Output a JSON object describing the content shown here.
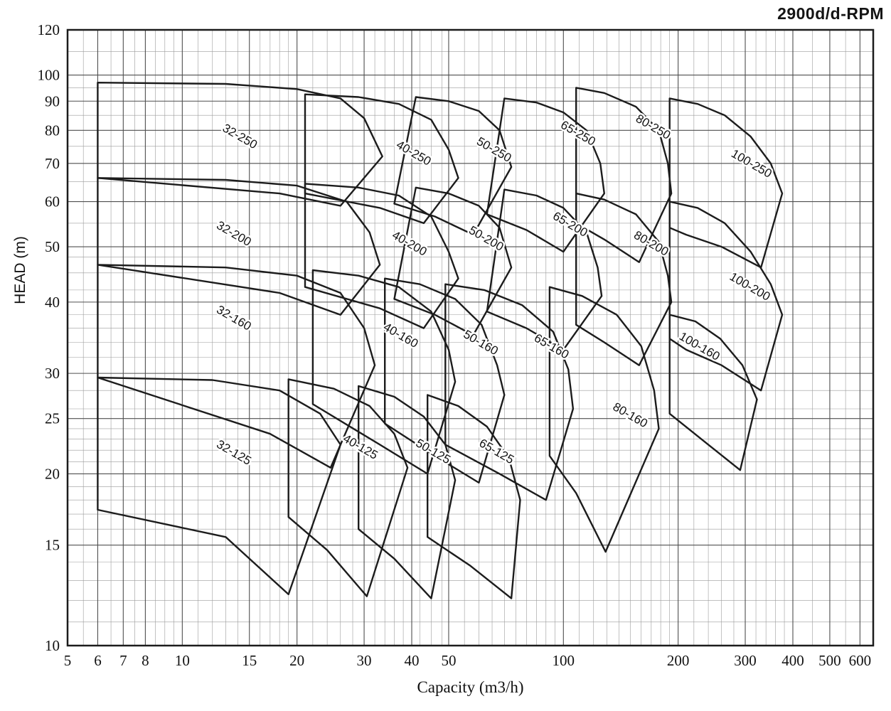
{
  "header": {
    "rpm_label": "2900d/d-RPM"
  },
  "colors": {
    "curve": "#1c1c1c",
    "grid_minor": "#9b9b9b",
    "grid_major": "#4f4f4f",
    "frame": "#1c1c1c",
    "text": "#111111",
    "background": "#ffffff"
  },
  "chart_data": {
    "type": "line",
    "subtype": "pump-selection-envelope-chart",
    "title": "2900d/d-RPM",
    "xlabel": "Capacity (m3/h)",
    "ylabel": "HEAD (m)",
    "x_scale": "log",
    "y_scale": "log",
    "xlim": [
      5,
      650
    ],
    "ylim": [
      10,
      120
    ],
    "grid": true,
    "x_ticks": [
      5,
      6,
      7,
      8,
      10,
      15,
      20,
      30,
      40,
      50,
      100,
      200,
      300,
      400,
      500,
      600
    ],
    "y_ticks": [
      10,
      15,
      20,
      25,
      30,
      40,
      50,
      60,
      70,
      80,
      90,
      100,
      120
    ],
    "x_minor": [
      5.5,
      6.5,
      7.5,
      8.5,
      9,
      9.5,
      11,
      12,
      13,
      14,
      16,
      17,
      18,
      19,
      22,
      24,
      26,
      28,
      32,
      34,
      36,
      38,
      42,
      45,
      48,
      55,
      60,
      65,
      70,
      75,
      80,
      85,
      90,
      95,
      110,
      120,
      130,
      140,
      150,
      160,
      170,
      180,
      190,
      220,
      240,
      260,
      280,
      320,
      340,
      360,
      380,
      450,
      550
    ],
    "y_minor": [
      11,
      12,
      13,
      14,
      16,
      17,
      18,
      19,
      21,
      22,
      23,
      24,
      26,
      28,
      32,
      34,
      36,
      38,
      42,
      45,
      48,
      55,
      65,
      75,
      85,
      95,
      110
    ],
    "label_angle": 30,
    "envelopes": [
      {
        "name": "32-125",
        "label_at": [
          13.5,
          21.5
        ],
        "points": [
          [
            6,
            29.5
          ],
          [
            12,
            29.2
          ],
          [
            18,
            28
          ],
          [
            23,
            25.5
          ],
          [
            26,
            22.5
          ],
          [
            19,
            12.3
          ],
          [
            13,
            15.5
          ],
          [
            6,
            17.3
          ]
        ]
      },
      {
        "name": "40-125",
        "label_at": [
          29,
          22
        ],
        "points": [
          [
            19,
            29.3
          ],
          [
            25,
            28.2
          ],
          [
            31,
            26.3
          ],
          [
            36,
            23.5
          ],
          [
            39,
            20.5
          ],
          [
            30.5,
            12.2
          ],
          [
            24,
            14.7
          ],
          [
            19,
            16.8
          ]
        ]
      },
      {
        "name": "50-125",
        "label_at": [
          45,
          21.6
        ],
        "points": [
          [
            29,
            28.5
          ],
          [
            36,
            27.3
          ],
          [
            43,
            25.2
          ],
          [
            49,
            22.5
          ],
          [
            52,
            19.5
          ],
          [
            45,
            12.1
          ],
          [
            36,
            14.2
          ],
          [
            29,
            16
          ]
        ]
      },
      {
        "name": "65-125",
        "label_at": [
          66,
          21.6
        ],
        "points": [
          [
            44,
            27.5
          ],
          [
            53,
            26.3
          ],
          [
            63,
            24.2
          ],
          [
            72,
            21.3
          ],
          [
            77,
            18
          ],
          [
            73,
            12.1
          ],
          [
            57,
            13.8
          ],
          [
            44,
            15.5
          ]
        ]
      },
      {
        "name": "32-160",
        "label_at": [
          13.5,
          37
        ],
        "points": [
          [
            6,
            46.5
          ],
          [
            13,
            46
          ],
          [
            20,
            44.5
          ],
          [
            26,
            41.5
          ],
          [
            30,
            36
          ],
          [
            32,
            31
          ],
          [
            24.5,
            20.5
          ],
          [
            17,
            23.5
          ],
          [
            6,
            29.5
          ]
        ]
      },
      {
        "name": "40-160",
        "label_at": [
          37,
          34.5
        ],
        "points": [
          [
            22,
            45.5
          ],
          [
            29,
            44.5
          ],
          [
            37,
            42.5
          ],
          [
            45,
            38.5
          ],
          [
            50,
            33
          ],
          [
            52,
            29
          ],
          [
            44,
            20
          ],
          [
            33,
            22.5
          ],
          [
            22,
            26.5
          ]
        ]
      },
      {
        "name": "50-160",
        "label_at": [
          60,
          33.5
        ],
        "points": [
          [
            34,
            44
          ],
          [
            42,
            43
          ],
          [
            52,
            40.5
          ],
          [
            61,
            36.5
          ],
          [
            67,
            31
          ],
          [
            70,
            27.5
          ],
          [
            60,
            19.3
          ],
          [
            46,
            21.5
          ],
          [
            34,
            24.5
          ]
        ]
      },
      {
        "name": "65-160",
        "label_at": [
          92,
          33
        ],
        "points": [
          [
            49,
            43
          ],
          [
            62,
            42
          ],
          [
            78,
            39.5
          ],
          [
            94,
            35.5
          ],
          [
            103,
            30.5
          ],
          [
            106,
            26
          ],
          [
            90,
            18
          ],
          [
            68,
            20
          ],
          [
            49,
            22.5
          ]
        ]
      },
      {
        "name": "80-160",
        "label_at": [
          148,
          25
        ],
        "points": [
          [
            92,
            42.5
          ],
          [
            112,
            41
          ],
          [
            138,
            38
          ],
          [
            160,
            33.5
          ],
          [
            173,
            28
          ],
          [
            178,
            24
          ],
          [
            129,
            14.6
          ],
          [
            108,
            18.5
          ],
          [
            92,
            21.5
          ]
        ]
      },
      {
        "name": "100-160",
        "label_at": [
          225,
          33
        ],
        "points": [
          [
            190,
            38
          ],
          [
            222,
            37
          ],
          [
            258,
            34.5
          ],
          [
            295,
            31
          ],
          [
            322,
            27
          ],
          [
            291,
            20.3
          ],
          [
            240,
            22.5
          ],
          [
            190,
            25.5
          ]
        ]
      },
      {
        "name": "32-200",
        "label_at": [
          13.5,
          52
        ],
        "points": [
          [
            6,
            66
          ],
          [
            13,
            65.5
          ],
          [
            20,
            64
          ],
          [
            27,
            60
          ],
          [
            31,
            53
          ],
          [
            33,
            46.5
          ],
          [
            26,
            38
          ],
          [
            18,
            41.5
          ],
          [
            6,
            46.5
          ]
        ]
      },
      {
        "name": "40-200",
        "label_at": [
          39,
          50
        ],
        "points": [
          [
            21,
            64.5
          ],
          [
            29,
            63.5
          ],
          [
            37,
            61.5
          ],
          [
            45,
            56.5
          ],
          [
            50,
            49
          ],
          [
            53,
            44
          ],
          [
            43,
            36
          ],
          [
            33,
            39
          ],
          [
            21,
            42.5
          ]
        ]
      },
      {
        "name": "50-200",
        "label_at": [
          62,
          51
        ],
        "points": [
          [
            41,
            63.5
          ],
          [
            50,
            62
          ],
          [
            60,
            59
          ],
          [
            68,
            54
          ],
          [
            73,
            46
          ],
          [
            58,
            35
          ],
          [
            46,
            38
          ],
          [
            36,
            40.5
          ]
        ]
      },
      {
        "name": "65-200",
        "label_at": [
          103,
          54
        ],
        "points": [
          [
            70,
            63
          ],
          [
            85,
            61.5
          ],
          [
            100,
            58.5
          ],
          [
            115,
            53
          ],
          [
            123,
            46
          ],
          [
            126,
            41
          ],
          [
            100,
            33
          ],
          [
            80,
            36
          ],
          [
            63,
            38.5
          ]
        ]
      },
      {
        "name": "80-200",
        "label_at": [
          168,
          50
        ],
        "points": [
          [
            108,
            62
          ],
          [
            128,
            60.5
          ],
          [
            155,
            57
          ],
          [
            178,
            51
          ],
          [
            188,
            44.5
          ],
          [
            192,
            40
          ],
          [
            158,
            31
          ],
          [
            128,
            34
          ],
          [
            108,
            36.5
          ]
        ]
      },
      {
        "name": "100-200",
        "label_at": [
          305,
          42
        ],
        "points": [
          [
            190,
            60
          ],
          [
            225,
            58.5
          ],
          [
            265,
            55
          ],
          [
            310,
            49
          ],
          [
            350,
            43
          ],
          [
            375,
            38
          ],
          [
            330,
            28
          ],
          [
            260,
            31
          ],
          [
            210,
            33
          ],
          [
            190,
            34.5
          ]
        ]
      },
      {
        "name": "32-250",
        "label_at": [
          14,
          77
        ],
        "points": [
          [
            6,
            97
          ],
          [
            13,
            96.5
          ],
          [
            20,
            94.5
          ],
          [
            26,
            91
          ],
          [
            30,
            84
          ],
          [
            33.5,
            72
          ],
          [
            26,
            59
          ],
          [
            18,
            62
          ],
          [
            6,
            66
          ]
        ]
      },
      {
        "name": "40-250",
        "label_at": [
          40,
          72
        ],
        "points": [
          [
            21,
            92.5
          ],
          [
            29,
            91.5
          ],
          [
            37,
            89
          ],
          [
            45,
            83.5
          ],
          [
            50,
            74
          ],
          [
            53,
            66
          ],
          [
            43,
            55
          ],
          [
            33,
            58.5
          ],
          [
            21,
            62
          ]
        ]
      },
      {
        "name": "50-250",
        "label_at": [
          65,
          73
        ],
        "points": [
          [
            41,
            91.5
          ],
          [
            50,
            90
          ],
          [
            60,
            86.5
          ],
          [
            68,
            80
          ],
          [
            73,
            69
          ],
          [
            58,
            52.5
          ],
          [
            46,
            56.5
          ],
          [
            36,
            59.5
          ]
        ]
      },
      {
        "name": "65-250",
        "label_at": [
          108,
          78
        ],
        "points": [
          [
            70,
            91
          ],
          [
            85,
            89.5
          ],
          [
            100,
            86
          ],
          [
            115,
            80
          ],
          [
            125,
            70
          ],
          [
            128,
            62
          ],
          [
            100,
            49
          ],
          [
            80,
            53.5
          ],
          [
            63,
            57
          ]
        ]
      },
      {
        "name": "80-250",
        "label_at": [
          170,
          80
        ],
        "points": [
          [
            108,
            95
          ],
          [
            128,
            93
          ],
          [
            155,
            88
          ],
          [
            178,
            80
          ],
          [
            188,
            70
          ],
          [
            192,
            62
          ],
          [
            158,
            47
          ],
          [
            128,
            51.5
          ],
          [
            108,
            55
          ]
        ]
      },
      {
        "name": "100-250",
        "label_at": [
          308,
          69
        ],
        "points": [
          [
            190,
            91
          ],
          [
            225,
            89
          ],
          [
            265,
            85
          ],
          [
            310,
            78
          ],
          [
            350,
            70
          ],
          [
            375,
            62
          ],
          [
            330,
            46
          ],
          [
            260,
            50
          ],
          [
            210,
            52.5
          ],
          [
            190,
            54
          ]
        ]
      }
    ]
  }
}
